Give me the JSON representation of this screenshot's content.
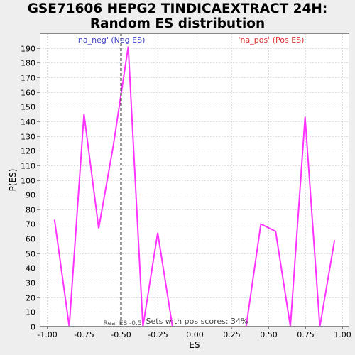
{
  "chart_data": {
    "type": "line",
    "title": [
      "GSE71606 HEPG2 TINDICAEXTRACT 24H:",
      "Random ES distribution"
    ],
    "xlabel": "ES",
    "ylabel": "P(ES)",
    "xlim": [
      -1.05,
      1.05
    ],
    "ylim": [
      0,
      200
    ],
    "x_ticks": [
      -1.0,
      -0.75,
      -0.5,
      -0.25,
      0.0,
      0.25,
      0.5,
      0.75,
      1.0
    ],
    "x_tick_labels": [
      "-1.00",
      "-0.75",
      "-0.50",
      "-0.25",
      "0.00",
      "0.25",
      "0.50",
      "0.75",
      "1.00"
    ],
    "y_ticks": [
      0,
      10,
      20,
      30,
      40,
      50,
      60,
      70,
      80,
      90,
      100,
      110,
      120,
      130,
      140,
      150,
      160,
      170,
      180,
      190
    ],
    "grid": true,
    "series": [
      {
        "color": "#ff33ff",
        "x": [
          -0.95,
          -0.85,
          -0.75,
          -0.65,
          -0.55,
          -0.45,
          -0.35,
          -0.25,
          -0.15,
          -0.05,
          0.05,
          0.15,
          0.25,
          0.35,
          0.45,
          0.55,
          0.65,
          0.75,
          0.85,
          0.95
        ],
        "y": [
          73,
          0,
          145,
          67,
          124,
          191,
          0,
          64,
          0,
          0,
          0,
          0,
          0,
          0,
          70,
          65,
          0,
          143,
          0,
          59
        ]
      }
    ],
    "reference_line": {
      "x": -0.5,
      "style": "dashed",
      "color": "#333333"
    },
    "annotations": {
      "neg_label": "'na_neg' (Neg ES)",
      "pos_label": "'na_pos' (Pos ES)",
      "neg_color": "#4444cc",
      "pos_color": "#dd3333",
      "real_es_label": "Real ES -0.5",
      "pos_scores_label": "Sets with pos scores: 34%"
    }
  }
}
